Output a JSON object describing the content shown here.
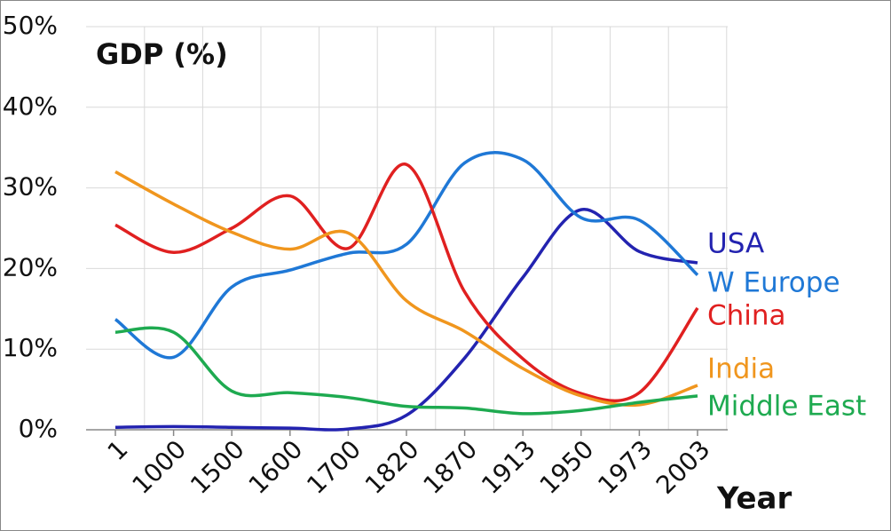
{
  "chart_data": {
    "type": "line",
    "title": "GDP (%)",
    "x_label": "Year",
    "categories": [
      "1",
      "1000",
      "1500",
      "1600",
      "1700",
      "1820",
      "1870",
      "1913",
      "1950",
      "1973",
      "2003"
    ],
    "series": [
      {
        "name": "USA",
        "color": "#2323b0",
        "values": [
          0.3,
          0.4,
          0.3,
          0.2,
          0.1,
          1.8,
          8.9,
          18.9,
          27.3,
          22.1,
          20.7
        ]
      },
      {
        "name": "W Europe",
        "color": "#1f78d6",
        "values": [
          13.7,
          9.0,
          17.7,
          19.8,
          21.9,
          23.0,
          33.1,
          33.5,
          26.3,
          26.0,
          19.2
        ]
      },
      {
        "name": "China",
        "color": "#e02020",
        "values": [
          25.4,
          22.0,
          25.0,
          29.0,
          22.5,
          32.9,
          17.1,
          8.8,
          4.5,
          4.6,
          15.1
        ]
      },
      {
        "name": "India",
        "color": "#f0961e",
        "values": [
          32.0,
          28.0,
          24.5,
          22.4,
          24.4,
          16.0,
          12.2,
          7.6,
          4.2,
          3.1,
          5.5
        ]
      },
      {
        "name": "Middle East",
        "color": "#1eaa50",
        "values": [
          12.1,
          12.1,
          4.8,
          4.6,
          4.0,
          2.9,
          2.7,
          2.0,
          2.4,
          3.4,
          4.2
        ]
      }
    ],
    "ylim": [
      0,
      50
    ],
    "yticks": [
      {
        "value": 0,
        "label": "0%"
      },
      {
        "value": 10,
        "label": "10%"
      },
      {
        "value": 20,
        "label": "20%"
      },
      {
        "value": 30,
        "label": "30%"
      },
      {
        "value": 40,
        "label": "40%"
      },
      {
        "value": 50,
        "label": "50%"
      }
    ],
    "grid": true
  }
}
